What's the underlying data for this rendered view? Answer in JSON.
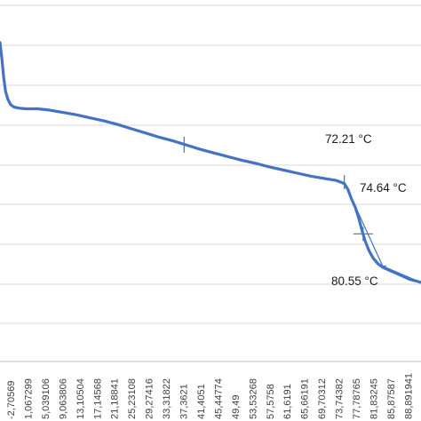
{
  "chart_data": {
    "type": "line",
    "title": "",
    "xlabel": "",
    "ylabel": "",
    "x_tick_labels": [
      "-2,70569",
      "1,067299",
      "5,039106",
      "9,063806",
      "13,10504",
      "17,14568",
      "21,18841",
      "25,23108",
      "29,27416",
      "33,31822",
      "37,3621",
      "41,4051",
      "45,44774",
      "49,49",
      "53,53268",
      "57,5758",
      "61,6191",
      "65,66191",
      "69,70312",
      "73,74382",
      "77,78765",
      "81,83245",
      "85,87587",
      "88,891941"
    ],
    "xlim": [
      -2.70569,
      88.891941
    ],
    "grid": "horizontal",
    "legend": "none",
    "series": [
      {
        "color": "#4472c4",
        "points": [
          [
            -2.7,
            0.0
          ],
          [
            -2.3,
            0.26
          ],
          [
            -1.9,
            0.58
          ],
          [
            -1.5,
            0.8
          ],
          [
            -1.0,
            0.93
          ],
          [
            -0.4,
            1.02
          ],
          [
            0.3,
            1.06
          ],
          [
            1.5,
            1.08
          ],
          [
            3.0,
            1.09
          ],
          [
            5.5,
            1.09
          ],
          [
            8.0,
            1.11
          ],
          [
            11.0,
            1.15
          ],
          [
            14.0,
            1.19
          ],
          [
            17.0,
            1.24
          ],
          [
            20.0,
            1.29
          ],
          [
            23.0,
            1.35
          ],
          [
            26.0,
            1.42
          ],
          [
            29.0,
            1.49
          ],
          [
            32.0,
            1.56
          ],
          [
            35.0,
            1.62
          ],
          [
            38.0,
            1.69
          ],
          [
            41.0,
            1.76
          ],
          [
            44.0,
            1.82
          ],
          [
            47.0,
            1.88
          ],
          [
            50.0,
            1.94
          ],
          [
            53.0,
            1.99
          ],
          [
            56.0,
            2.05
          ],
          [
            59.0,
            2.1
          ],
          [
            62.0,
            2.15
          ],
          [
            65.0,
            2.2
          ],
          [
            68.0,
            2.24
          ],
          [
            70.5,
            2.27
          ],
          [
            72.2,
            2.32
          ],
          [
            73.0,
            2.42
          ],
          [
            73.8,
            2.58
          ],
          [
            74.64,
            2.72
          ],
          [
            75.3,
            2.88
          ],
          [
            76.0,
            3.08
          ],
          [
            76.8,
            3.28
          ],
          [
            77.6,
            3.43
          ],
          [
            78.5,
            3.55
          ],
          [
            79.5,
            3.64
          ],
          [
            80.55,
            3.7
          ],
          [
            82.0,
            3.75
          ],
          [
            83.5,
            3.8
          ],
          [
            85.0,
            3.85
          ],
          [
            86.5,
            3.9
          ],
          [
            88.0,
            3.93
          ],
          [
            88.89,
            3.95
          ]
        ]
      }
    ],
    "annotations": [
      {
        "text": "72.21 °C"
      },
      {
        "text": "74.64 °C"
      },
      {
        "text": "80.55 °C"
      }
    ]
  }
}
